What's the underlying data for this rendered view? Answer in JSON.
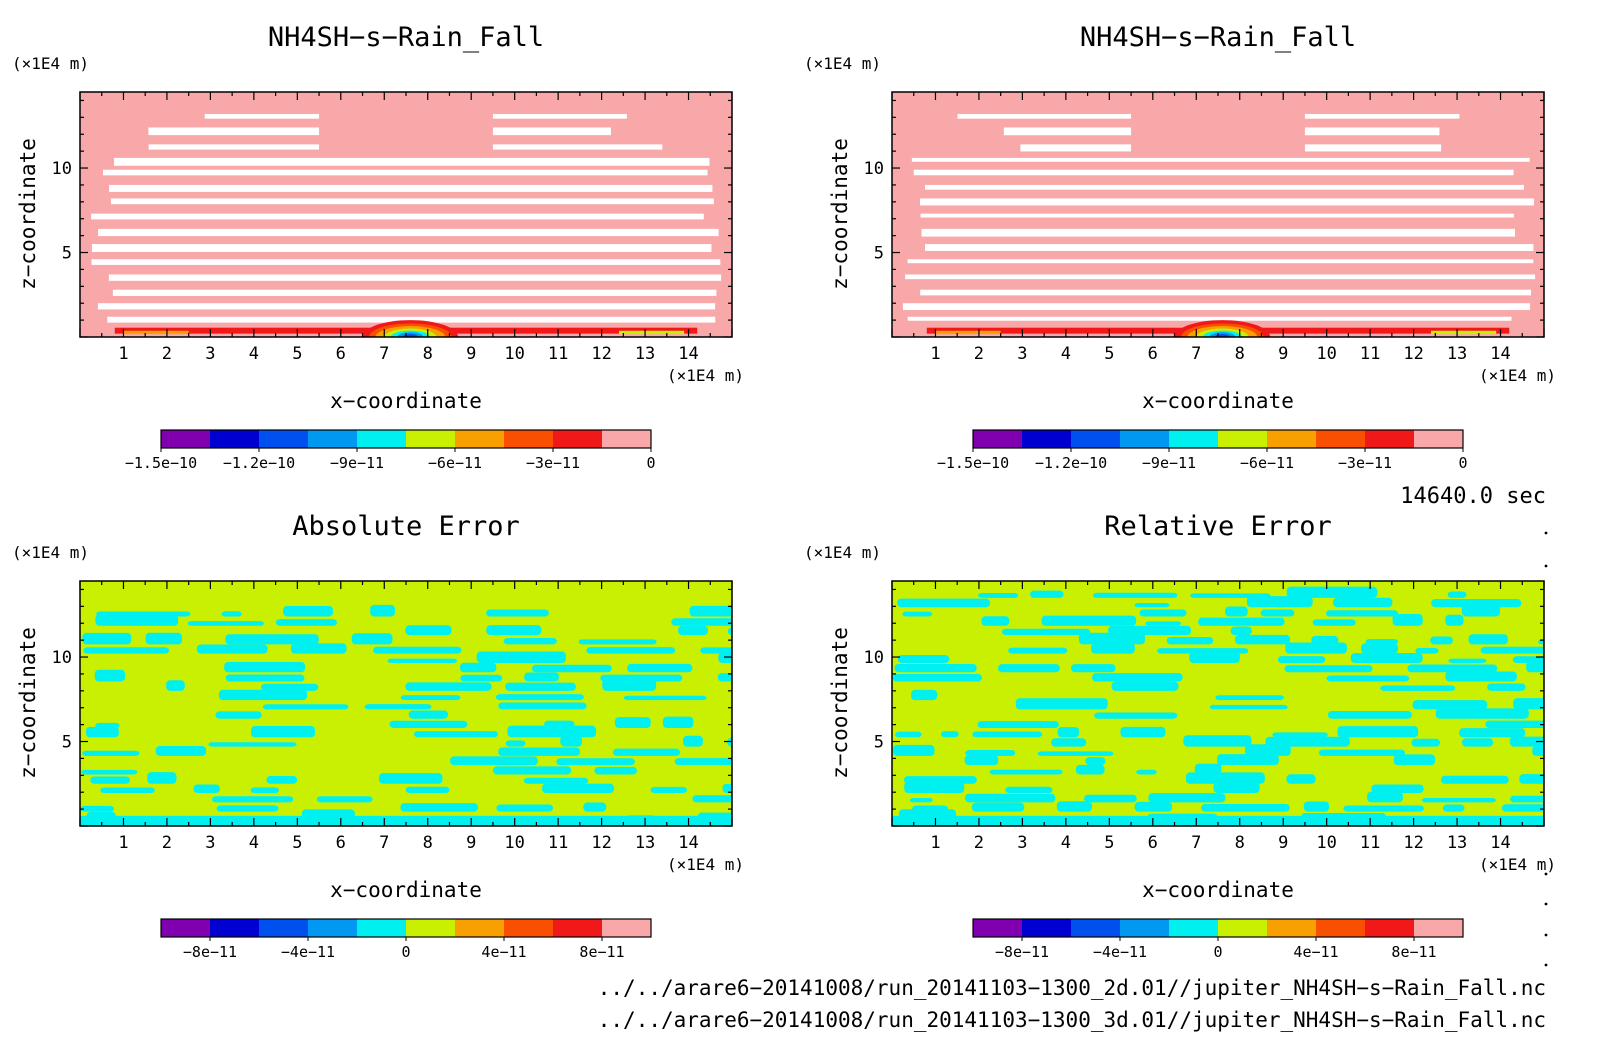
{
  "panels": [
    {
      "title": "NH4SH−s−Rain_Fall",
      "kind": "field",
      "colorbar_ticks": [
        "−1.5e−10",
        "−1.2e−10",
        "−9e−11",
        "−6e−11",
        "−3e−11",
        "0"
      ],
      "colorbar_values": [
        -1.5e-10,
        -1.2e-10,
        -9e-11,
        -6e-11,
        -3e-11,
        0
      ]
    },
    {
      "title": "NH4SH−s−Rain_Fall",
      "kind": "field",
      "colorbar_ticks": [
        "−1.5e−10",
        "−1.2e−10",
        "−9e−11",
        "−6e−11",
        "−3e−11",
        "0"
      ],
      "colorbar_values": [
        -1.5e-10,
        -1.2e-10,
        -9e-11,
        -6e-11,
        -3e-11,
        0
      ]
    },
    {
      "title": "Absolute Error",
      "kind": "error-abs",
      "colorbar_ticks": [
        "−8e−11",
        "−4e−11",
        "0",
        "4e−11",
        "8e−11"
      ],
      "colorbar_values": [
        -8e-11,
        -4e-11,
        0,
        4e-11,
        8e-11
      ]
    },
    {
      "title": "Relative Error",
      "kind": "error-rel",
      "colorbar_ticks": [
        "−8e−11",
        "−4e−11",
        "0",
        "4e−11",
        "8e−11"
      ],
      "colorbar_values": [
        -8e-11,
        -4e-11,
        0,
        4e-11,
        8e-11
      ]
    }
  ],
  "axes": {
    "xlabel": "x−coordinate",
    "ylabel": "z−coordinate",
    "x_unit": "(×1E4 m)",
    "y_unit": "(×1E4 m)",
    "x_ticks": [
      "1",
      "2",
      "3",
      "4",
      "5",
      "6",
      "7",
      "8",
      "9",
      "10",
      "11",
      "12",
      "13",
      "14"
    ],
    "y_ticks": [
      "5",
      "10"
    ]
  },
  "time_label": "14640.0 sec",
  "footer": [
    "../../arare6−20141008/run_20141103−1300_2d.01//jupiter_NH4SH−s−Rain_Fall.nc",
    "../../arare6−20141008/run_20141103−1300_3d.01//jupiter_NH4SH−s−Rain_Fall.nc"
  ],
  "colors": {
    "field_palette": [
      "#8000b0",
      "#0000d0",
      "#0050f0",
      "#0098f0",
      "#00f0f0",
      "#c8f000",
      "#f8a000",
      "#f85000",
      "#f01818",
      "#f8a8a8"
    ],
    "error_palette": [
      "#8000b0",
      "#0000d0",
      "#0050f0",
      "#0098f0",
      "#00f0f0",
      "#c8f000",
      "#f8a000",
      "#f85000",
      "#f01818",
      "#f8a8a8"
    ],
    "cyan": "#00f0f0",
    "lime": "#c8f000",
    "pink": "#f8a8a8"
  },
  "chart_data": [
    {
      "type": "heatmap",
      "title": "NH4SH−s−Rain_Fall",
      "xlabel": "x−coordinate",
      "ylabel": "z−coordinate",
      "xlim": [
        0,
        15
      ],
      "ylim": [
        0,
        14.5
      ],
      "colorbar_range": [
        -1.5e-10,
        0
      ],
      "note_levels": "mostly 0 (pink) with white gaps; negative values near surface at x≈7.5 and along z≈0.5"
    },
    {
      "type": "heatmap",
      "title": "NH4SH−s−Rain_Fall",
      "xlabel": "x−coordinate",
      "ylabel": "z−coordinate",
      "xlim": [
        0,
        15
      ],
      "ylim": [
        0,
        14.5
      ],
      "colorbar_range": [
        -1.5e-10,
        0
      ]
    },
    {
      "type": "heatmap",
      "title": "Absolute Error",
      "xlabel": "x−coordinate",
      "ylabel": "z−coordinate",
      "xlim": [
        0,
        15
      ],
      "ylim": [
        0,
        14.5
      ],
      "colorbar_range": [
        -1e-10,
        1e-10
      ]
    },
    {
      "type": "heatmap",
      "title": "Relative Error",
      "xlabel": "x−coordinate",
      "ylabel": "z−coordinate",
      "xlim": [
        0,
        15
      ],
      "ylim": [
        0,
        14.5
      ],
      "colorbar_range": [
        -1e-10,
        1e-10
      ]
    }
  ]
}
